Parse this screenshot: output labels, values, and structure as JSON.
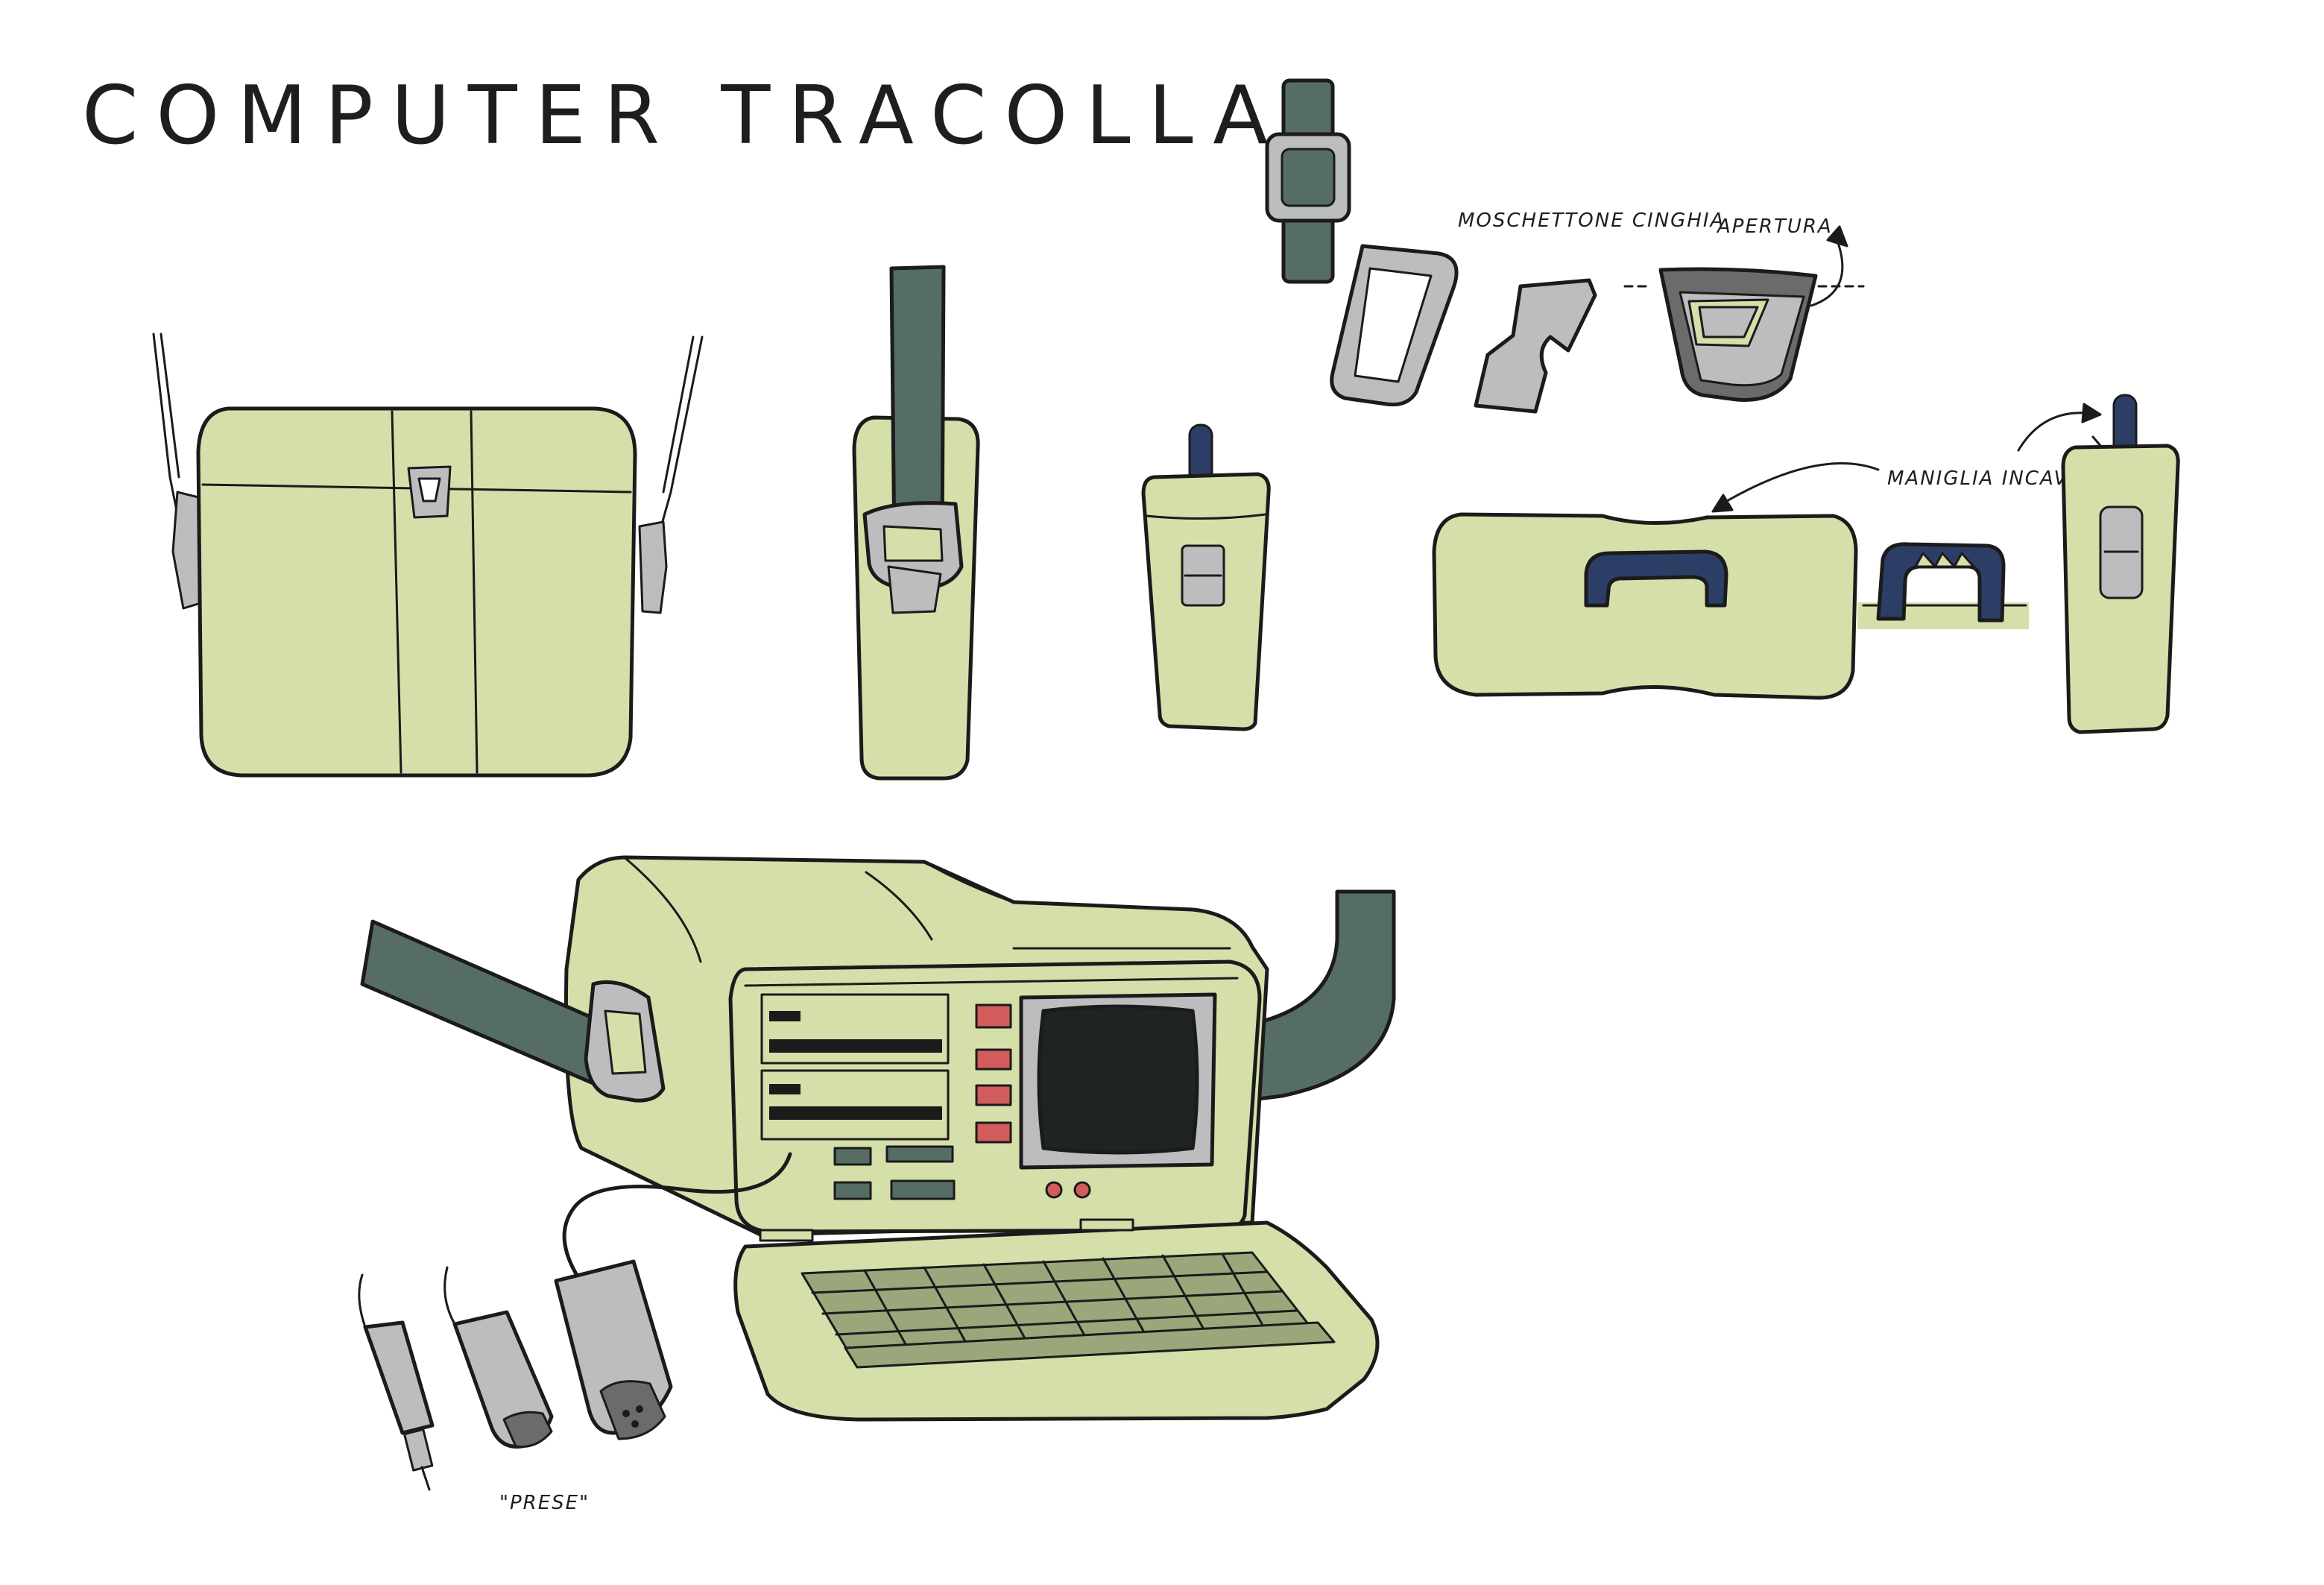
{
  "title": "COMPUTER TRACOLLA",
  "annotations": {
    "carabiner": "MOSCHETTONE CINGHIA",
    "opening": "APERTURA",
    "handle": "MANIGLIA INCAVATA",
    "plugs": "\"PRESE\""
  },
  "colors": {
    "body": "#d5dfa9",
    "strap": "#566d65",
    "metal": "#bcbdbf",
    "handle": "#2d3e66",
    "screen": "#1f2420",
    "button": "#d25b5b",
    "keys": "#9aa77a",
    "outline": "#1b1b1b"
  }
}
